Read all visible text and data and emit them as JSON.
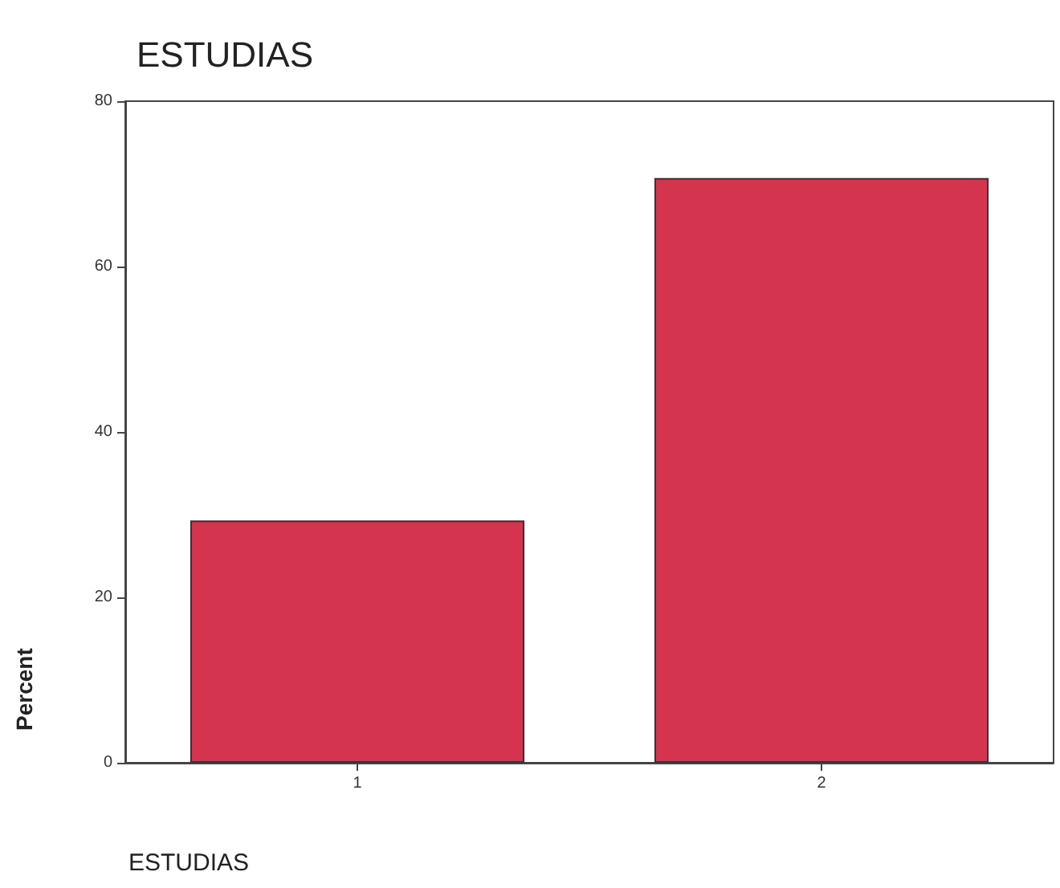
{
  "chart_data": {
    "type": "bar",
    "title": "ESTUDIAS",
    "xlabel": "ESTUDIAS",
    "ylabel": "Percent",
    "categories": [
      "1",
      "2"
    ],
    "values": [
      29.3,
      70.7
    ],
    "color": "#d5344e",
    "ylim": [
      0,
      80
    ],
    "yticks": [
      0,
      20,
      40,
      60,
      80
    ],
    "grid": false
  }
}
